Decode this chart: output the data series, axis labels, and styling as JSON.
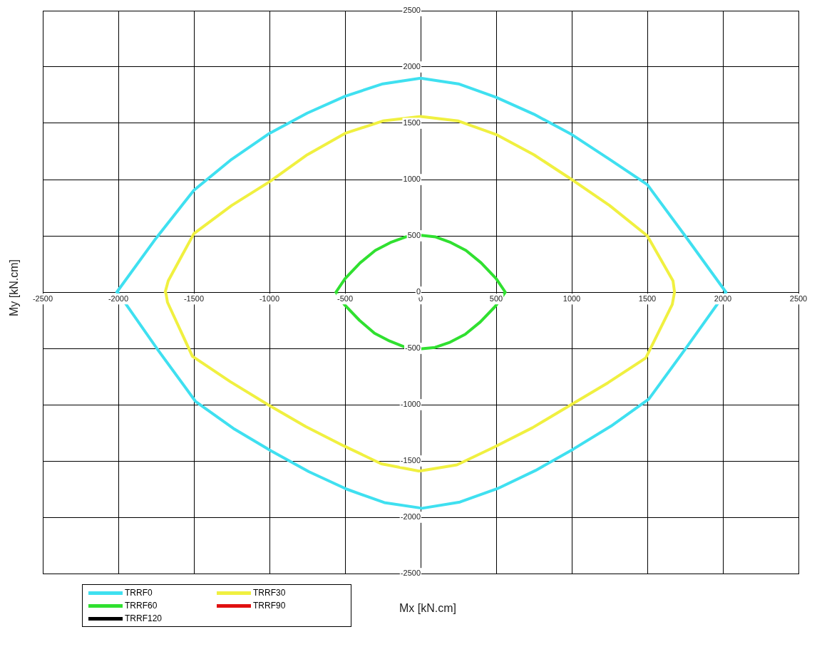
{
  "chart_data": {
    "type": "line",
    "xlabel": "Mx [kN.cm]",
    "ylabel": "My [kN.cm]",
    "xlim": [
      -2500,
      2500
    ],
    "ylim": [
      -2500,
      2500
    ],
    "xticks": [
      -2500,
      -2000,
      -1500,
      -1000,
      -500,
      0,
      500,
      1000,
      1500,
      2000,
      2500
    ],
    "yticks": [
      -2500,
      -2000,
      -1500,
      -1000,
      -500,
      0,
      500,
      1000,
      1500,
      2000,
      2500
    ],
    "grid": true,
    "legend": "bottom left",
    "marker": "none",
    "line_style": "solid",
    "series": [
      {
        "name": "TRRF0",
        "color": "#3fe0f0",
        "x": [
          -2010,
          -1750,
          -1500,
          -1250,
          -1000,
          -750,
          -500,
          -250,
          0,
          250,
          500,
          750,
          1000,
          1250,
          1500,
          1750,
          2020,
          1760,
          1510,
          1260,
          1010,
          760,
          510,
          260,
          10,
          -240,
          -490,
          -740,
          -990,
          -1240,
          -1490,
          -1740,
          -2000
        ],
        "values": [
          0,
          480,
          905,
          1180,
          1410,
          1590,
          1740,
          1850,
          1900,
          1850,
          1730,
          1580,
          1400,
          1180,
          955,
          500,
          0,
          -490,
          -950,
          -1190,
          -1395,
          -1585,
          -1745,
          -1865,
          -1920,
          -1870,
          -1750,
          -1595,
          -1410,
          -1210,
          -970,
          -510,
          -10
        ]
      },
      {
        "name": "TRRF30",
        "color": "#f0f040",
        "x": [
          -1690,
          -1670,
          -1500,
          -1250,
          -1000,
          -750,
          -500,
          -250,
          0,
          250,
          500,
          750,
          1000,
          1250,
          1500,
          1670,
          1680,
          1665,
          1490,
          1240,
          990,
          740,
          490,
          240,
          -10,
          -260,
          -510,
          -760,
          -1010,
          -1260,
          -1510,
          -1675,
          -1685
        ],
        "values": [
          0,
          100,
          520,
          770,
          980,
          1220,
          1410,
          1520,
          1560,
          1520,
          1400,
          1220,
          1000,
          770,
          500,
          100,
          0,
          -110,
          -585,
          -805,
          -1005,
          -1205,
          -1375,
          -1535,
          -1590,
          -1525,
          -1365,
          -1195,
          -1000,
          -795,
          -570,
          -90,
          -10
        ]
      },
      {
        "name": "TRRF60",
        "color": "#30e030",
        "x": [
          -560,
          -500,
          -400,
          -300,
          -200,
          -100,
          0,
          100,
          200,
          300,
          400,
          500,
          560,
          495,
          395,
          295,
          195,
          95,
          -5,
          -105,
          -205,
          -305,
          -405,
          -505,
          -555
        ],
        "values": [
          0,
          120,
          260,
          370,
          440,
          490,
          505,
          490,
          440,
          370,
          260,
          120,
          0,
          -125,
          -265,
          -375,
          -445,
          -492,
          -505,
          -488,
          -435,
          -365,
          -250,
          -110,
          -10
        ]
      },
      {
        "name": "TRRF90",
        "color": "#e01010"
      },
      {
        "name": "TRRF120",
        "color": "#000000"
      }
    ]
  }
}
